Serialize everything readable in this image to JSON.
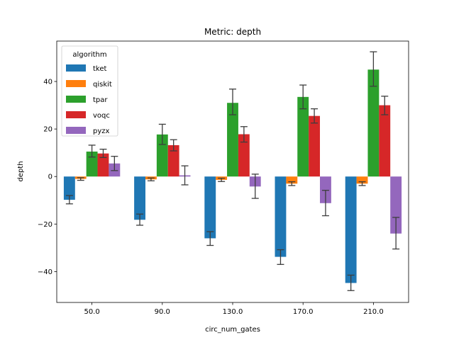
{
  "chart_data": {
    "type": "bar",
    "title": "Metric: depth",
    "xlabel": "circ_num_gates",
    "ylabel": "depth",
    "categories": [
      "50.0",
      "90.0",
      "130.0",
      "170.0",
      "210.0"
    ],
    "ylim": [
      -53,
      57
    ],
    "yticks": [
      -40,
      -20,
      0,
      20,
      40
    ],
    "grid": false,
    "legend": {
      "title": "algorithm",
      "placement": "upper-left"
    },
    "series": [
      {
        "name": "tket",
        "color": "#1f77b4",
        "values": [
          -9.8,
          -18.2,
          -26.0,
          -33.8,
          -44.8
        ],
        "err_low": [
          -11.5,
          -20.5,
          -29.0,
          -37.0,
          -48.0
        ],
        "err_high": [
          -8.0,
          -15.8,
          -23.2,
          -30.8,
          -41.5
        ]
      },
      {
        "name": "qiskit",
        "color": "#ff7f0e",
        "values": [
          -1.0,
          -1.2,
          -1.4,
          -3.0,
          -3.0
        ],
        "err_low": [
          -1.6,
          -1.8,
          -2.1,
          -3.8,
          -3.8
        ],
        "err_high": [
          -0.5,
          -0.6,
          -0.7,
          -2.2,
          -2.2
        ]
      },
      {
        "name": "tpar",
        "color": "#2ca02c",
        "values": [
          10.5,
          17.7,
          31.0,
          33.5,
          45.0
        ],
        "err_low": [
          8.2,
          13.5,
          26.0,
          28.5,
          38.0
        ],
        "err_high": [
          13.2,
          22.0,
          36.8,
          38.5,
          52.5
        ]
      },
      {
        "name": "voqc",
        "color": "#d62728",
        "values": [
          9.7,
          13.2,
          17.8,
          25.5,
          30.0
        ],
        "err_low": [
          8.0,
          10.8,
          14.5,
          22.5,
          26.0
        ],
        "err_high": [
          11.5,
          15.5,
          21.0,
          28.5,
          33.8
        ]
      },
      {
        "name": "pyzx",
        "color": "#9467bd",
        "values": [
          5.5,
          0.5,
          -4.2,
          -11.2,
          -24.0
        ],
        "err_low": [
          2.5,
          -3.5,
          -9.2,
          -16.5,
          -30.5
        ],
        "err_high": [
          8.5,
          4.5,
          1.0,
          -5.8,
          -17.2
        ]
      }
    ]
  }
}
